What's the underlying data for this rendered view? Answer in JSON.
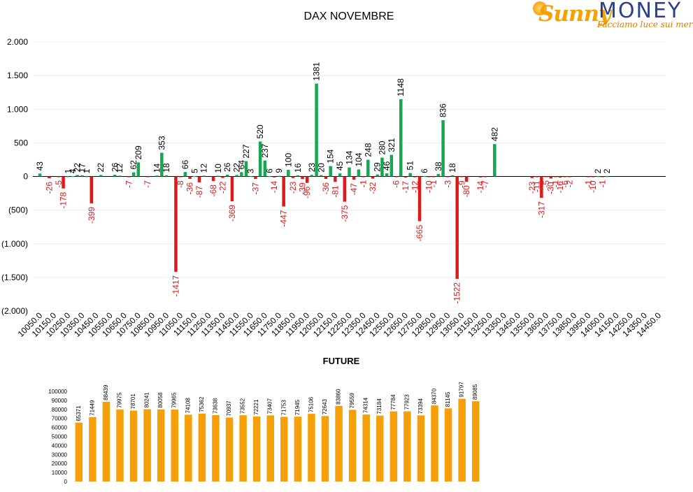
{
  "logo": {
    "brand_left": "Sunny",
    "brand_right": "MONEY",
    "tagline": "Facciamo luce sui mercati"
  },
  "colors": {
    "positive": "#17a652",
    "negative": "#e01818",
    "future": "#f5a00b",
    "axis_text": "#000000",
    "negative_label": "#e01818",
    "grid": "#eeeeee"
  },
  "chart_data": [
    {
      "type": "bar",
      "title": "DAX NOVEMBRE",
      "ylim": [
        -2000,
        2000
      ],
      "yticks": [
        2000,
        1500,
        1000,
        500,
        0,
        -500,
        -1000,
        -1500,
        -2000
      ],
      "ytick_labels": [
        "2.000",
        "1.500",
        "1.000",
        "500",
        "0",
        "(500)",
        "(1.000)",
        "(1.500)",
        "(2.000)"
      ],
      "categories": [
        "10050.0",
        "10150.0",
        "10250.0",
        "10350.0",
        "10450.0",
        "10550.0",
        "10650.0",
        "10750.0",
        "10850.0",
        "10950.0",
        "11050.0",
        "11150.0",
        "11250.0",
        "11350.0",
        "11450.0",
        "11550.0",
        "11650.0",
        "11750.0",
        "11850.0",
        "11950.0",
        "12050.0",
        "12150.0",
        "12250.0",
        "12350.0",
        "12450.0",
        "12550.0",
        "12650.0",
        "12750.0",
        "12850.0",
        "12950.0",
        "13050.0",
        "13150.0",
        "13250.0",
        "13350.0",
        "13450.0",
        "13550.0",
        "13650.0",
        "13750.0",
        "13850.0",
        "13950.0",
        "14050.0",
        "14150.0",
        "14250.0",
        "14350.0",
        "14450.0"
      ],
      "series": [
        {
          "values": [
            [
              null,
              43,
              null
            ],
            [
              -26,
              null,
              -5
            ],
            [
              -178,
              1,
              4
            ],
            [
              22,
              17,
              1
            ],
            [
              -399,
              null,
              22
            ],
            [
              null,
              null,
              26
            ],
            [
              12,
              null,
              -7
            ],
            [
              62,
              209,
              null
            ],
            [
              -7,
              null,
              14
            ],
            [
              353,
              18,
              null
            ],
            [
              -1417,
              -8,
              66
            ],
            [
              -36,
              5,
              -87
            ],
            [
              12,
              null,
              -68
            ],
            [
              10,
              -22,
              26
            ],
            [
              -369,
              22,
              64
            ],
            [
              227,
              3,
              -37
            ],
            [
              520,
              237,
              6
            ],
            [
              -14,
              9,
              -447
            ],
            [
              100,
              -23,
              16
            ],
            [
              -39,
              -96,
              23
            ],
            [
              1381,
              20,
              -36
            ],
            [
              154,
              -81,
              45
            ],
            [
              -375,
              134,
              -47
            ],
            [
              104,
              -1,
              248
            ],
            [
              -32,
              29,
              280
            ],
            [
              46,
              321,
              -6
            ],
            [
              1148,
              -17,
              51
            ],
            [
              -12,
              -665,
              6
            ],
            [
              -10,
              -1,
              38
            ],
            [
              836,
              -3,
              18
            ],
            [
              -1522,
              -9,
              -80
            ],
            [
              null,
              null,
              -14
            ],
            [
              -7,
              null,
              482
            ],
            [
              null,
              null,
              null
            ],
            [
              null,
              null,
              null
            ],
            [
              null,
              -23,
              -11
            ],
            [
              -317,
              -5,
              -30
            ],
            [
              -1,
              -16,
              -6
            ],
            [
              -2,
              null,
              null
            ],
            [
              null,
              -1,
              -10
            ],
            [
              2,
              -1,
              2
            ],
            [
              null,
              null,
              null
            ],
            [
              null,
              null,
              null
            ],
            [
              null,
              null,
              null
            ],
            [
              null,
              null,
              null
            ]
          ]
        }
      ]
    },
    {
      "type": "bar",
      "title": "FUTURE",
      "ylim": [
        0,
        100000
      ],
      "yticks": [
        0,
        10000,
        20000,
        30000,
        40000,
        50000,
        60000,
        70000,
        80000,
        90000,
        100000
      ],
      "values": [
        65371,
        71449,
        88439,
        79975,
        78701,
        80241,
        80058,
        79965,
        74108,
        75362,
        73638,
        70937,
        73552,
        72221,
        73407,
        71753,
        71945,
        75106,
        72643,
        83860,
        79559,
        74314,
        73184,
        77784,
        77923,
        73394,
        84370,
        81145,
        91797,
        89085
      ]
    }
  ]
}
